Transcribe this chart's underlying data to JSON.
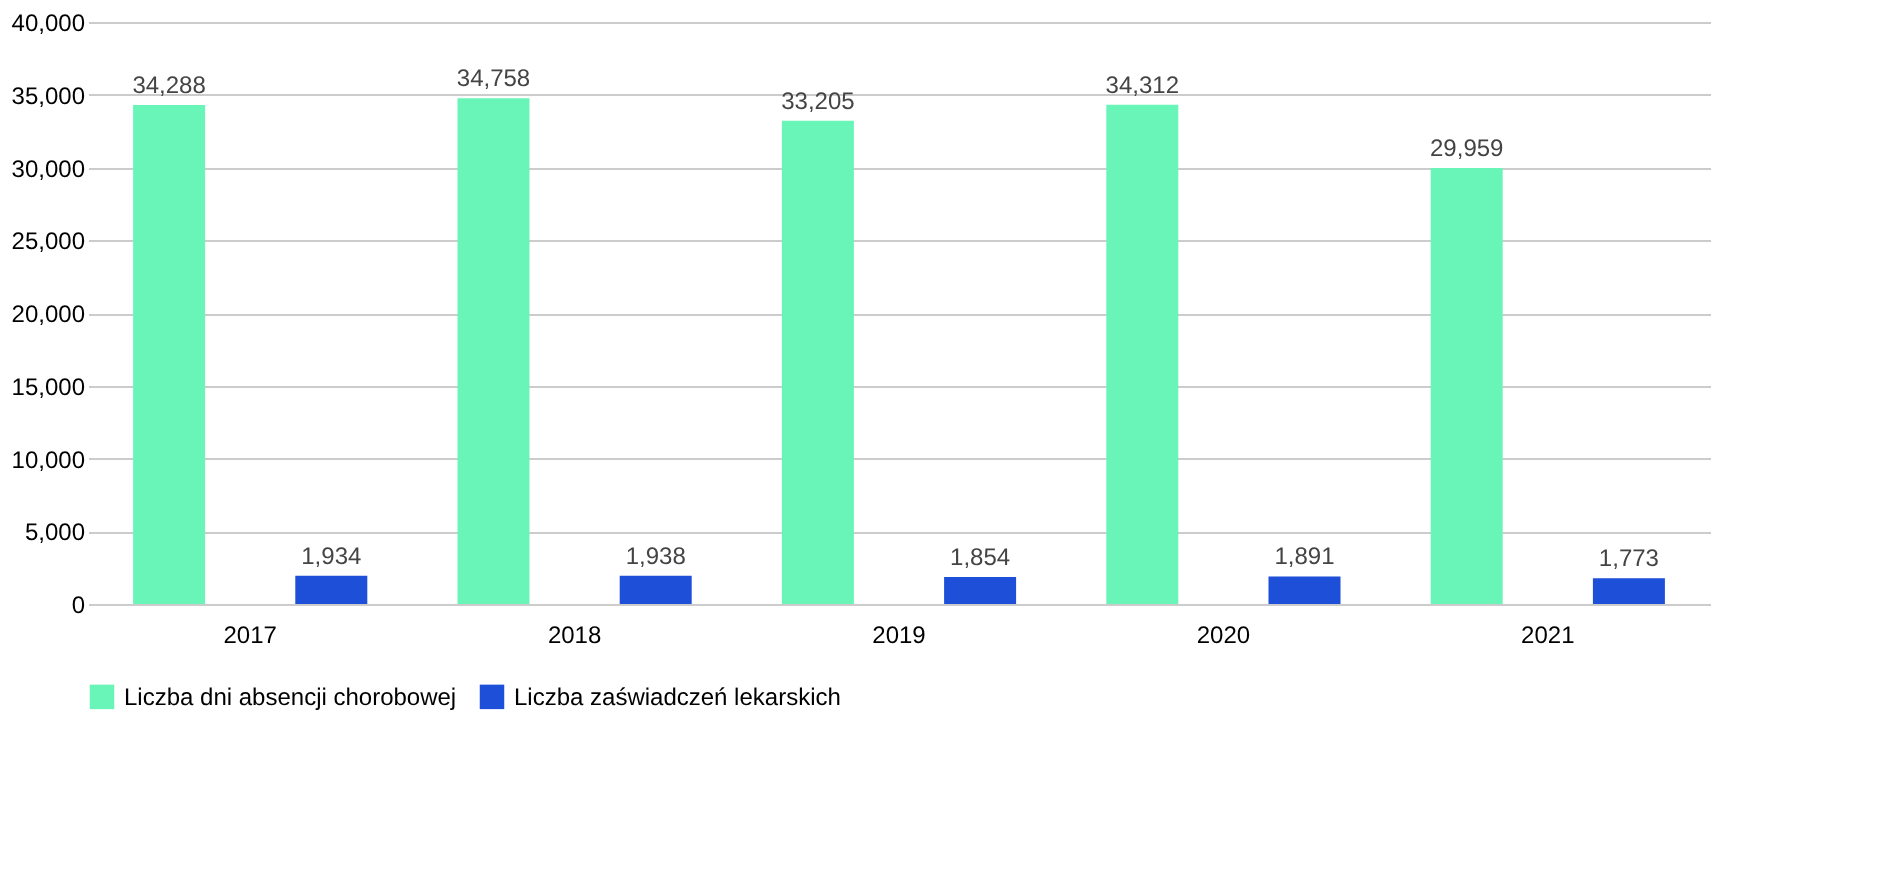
{
  "chart_data": {
    "type": "bar",
    "categories": [
      "2017",
      "2018",
      "2019",
      "2020",
      "2021"
    ],
    "series": [
      {
        "name": "Liczba dni absencji chorobowej",
        "color": "#6af5b8",
        "values": [
          34288,
          34758,
          33205,
          34312,
          29959
        ],
        "value_labels": [
          "34,288",
          "34,758",
          "33,205",
          "34,312",
          "29,959"
        ]
      },
      {
        "name": "Liczba zaświadczeń lekarskich",
        "color": "#1d4fd8",
        "values": [
          1934,
          1938,
          1854,
          1891,
          1773
        ],
        "value_labels": [
          "1,934",
          "1,938",
          "1,854",
          "1,891",
          "1,773"
        ]
      }
    ],
    "ylim": [
      0,
      40000
    ],
    "yticks": [
      {
        "value": 0,
        "label": "0"
      },
      {
        "value": 5000,
        "label": "5,000"
      },
      {
        "value": 10000,
        "label": "10,000"
      },
      {
        "value": 15000,
        "label": "15,000"
      },
      {
        "value": 20000,
        "label": "20,000"
      },
      {
        "value": 25000,
        "label": "25,000"
      },
      {
        "value": 30000,
        "label": "30,000"
      },
      {
        "value": 35000,
        "label": "35,000"
      },
      {
        "value": 40000,
        "label": "40,000"
      }
    ],
    "grid": "y",
    "legend": "bottom"
  }
}
